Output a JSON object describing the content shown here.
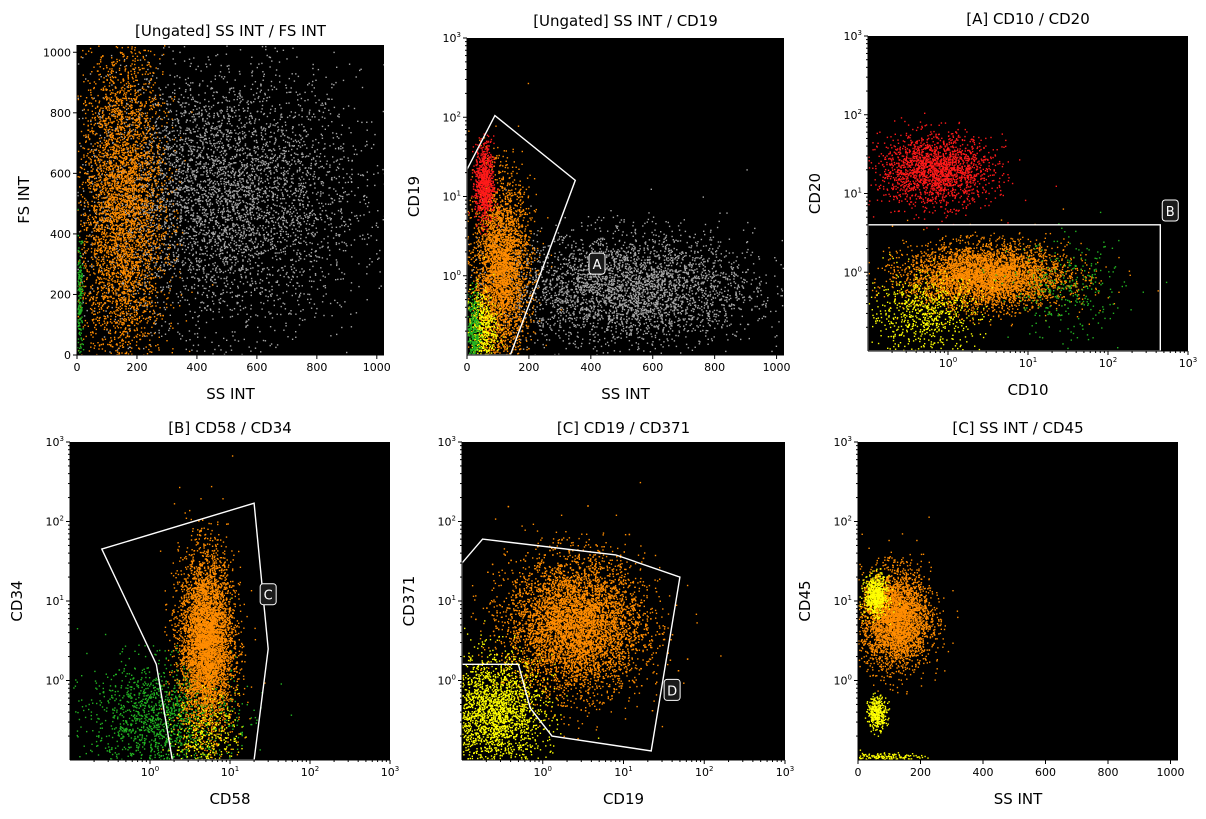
{
  "figure": "flow cytometry gating panels",
  "colors": {
    "background": "#000000",
    "orange": "#ff8c00",
    "red": "#ff1a1a",
    "yellow": "#ffff00",
    "green": "#22b422",
    "gray": "#a6a6a6",
    "gate": "#ffffff"
  },
  "chart_data": [
    {
      "type": "scatter",
      "title": "[Ungated] SS INT / FS INT",
      "xlabel": "SS INT",
      "ylabel": "FS INT",
      "xscale": "linear",
      "yscale": "linear",
      "xlim": [
        0,
        1024
      ],
      "ylim": [
        0,
        1024
      ],
      "xticks": [
        "0",
        "200",
        "400",
        "600",
        "800",
        "1000"
      ],
      "yticks": [
        "0",
        "200",
        "400",
        "600",
        "800",
        "1000"
      ],
      "gates": [],
      "populations": [
        {
          "color": "#a6a6a6",
          "x": [
            480,
            230
          ],
          "y": [
            520,
            210
          ],
          "n": 5000
        },
        {
          "color": "#ff8c00",
          "x": [
            150,
            70
          ],
          "y": [
            480,
            270
          ],
          "n": 4500
        },
        {
          "color": "#22b422",
          "x": [
            8,
            6
          ],
          "y": [
            200,
            100
          ],
          "n": 200
        }
      ]
    },
    {
      "type": "scatter",
      "title": "[Ungated] SS INT / CD19",
      "xlabel": "SS INT",
      "ylabel": "CD19",
      "xscale": "linear",
      "yscale": "log",
      "xlim": [
        0,
        1024
      ],
      "ylim": [
        0.1,
        1000
      ],
      "xticks": [
        "0",
        "200",
        "400",
        "600",
        "800",
        "1000"
      ],
      "yticks": [
        "10^0",
        "10^1",
        "10^2",
        "10^3"
      ],
      "gates": [
        {
          "label": "A",
          "label_at": [
            420,
            1.4
          ],
          "points": [
            [
              0,
              22
            ],
            [
              90,
              105
            ],
            [
              350,
              16
            ],
            [
              140,
              0.1
            ],
            [
              0,
              0.1
            ]
          ]
        }
      ],
      "populations": [
        {
          "color": "#a6a6a6",
          "x": [
            520,
            200
          ],
          "y": [
            0.7,
            0.35
          ],
          "n": 3500
        },
        {
          "color": "#ff8c00",
          "x": [
            110,
            45
          ],
          "y": [
            1.2,
            0.55
          ],
          "n": 3500
        },
        {
          "color": "#ff1a1a",
          "x": [
            55,
            15
          ],
          "y": [
            15,
            0.25
          ],
          "n": 800
        },
        {
          "color": "#ffff00",
          "x": [
            45,
            25
          ],
          "y": [
            0.22,
            0.25
          ],
          "n": 500
        },
        {
          "color": "#22b422",
          "x": [
            20,
            10
          ],
          "y": [
            0.2,
            0.25
          ],
          "n": 300
        }
      ]
    },
    {
      "type": "scatter",
      "title": "[A] CD10 / CD20",
      "xlabel": "CD10",
      "ylabel": "CD20",
      "xscale": "log",
      "yscale": "log",
      "xlim": [
        0.1,
        1000
      ],
      "ylim": [
        0.1,
        1000
      ],
      "xticks": [
        "10^0",
        "10^1",
        "10^2",
        "10^3"
      ],
      "yticks": [
        "10^0",
        "10^1",
        "10^2",
        "10^3"
      ],
      "gates": [
        {
          "label": "B",
          "label_at": [
            600,
            6
          ],
          "points": [
            [
              0.1,
              4
            ],
            [
              450,
              4
            ],
            [
              450,
              0.1
            ],
            [
              0.1,
              0.1
            ]
          ]
        }
      ],
      "populations": [
        {
          "color": "#ff1a1a",
          "x": [
            0.7,
            0.35
          ],
          "y": [
            20,
            0.22
          ],
          "n": 2000
        },
        {
          "color": "#ff8c00",
          "x": [
            3,
            0.5
          ],
          "y": [
            0.9,
            0.2
          ],
          "n": 4500
        },
        {
          "color": "#ffff00",
          "x": [
            0.5,
            0.35
          ],
          "y": [
            0.3,
            0.25
          ],
          "n": 700
        },
        {
          "color": "#22b422",
          "x": [
            30,
            0.35
          ],
          "y": [
            0.6,
            0.3
          ],
          "n": 300
        }
      ]
    },
    {
      "type": "scatter",
      "title": "[B] CD58 / CD34",
      "xlabel": "CD58",
      "ylabel": "CD34",
      "xscale": "log",
      "yscale": "log",
      "xlim": [
        0.1,
        1000
      ],
      "ylim": [
        0.1,
        1000
      ],
      "xticks": [
        "10^0",
        "10^1",
        "10^2",
        "10^3"
      ],
      "yticks": [
        "10^0",
        "10^1",
        "10^2",
        "10^3"
      ],
      "gates": [
        {
          "label": "C",
          "label_at": [
            30,
            12
          ],
          "points": [
            [
              0.25,
              45
            ],
            [
              20,
              170
            ],
            [
              30,
              2.5
            ],
            [
              20,
              0.1
            ],
            [
              1.9,
              0.1
            ],
            [
              1.2,
              1.6
            ]
          ]
        }
      ],
      "populations": [
        {
          "color": "#22b422",
          "x": [
            1.4,
            0.45
          ],
          "y": [
            0.35,
            0.35
          ],
          "n": 1500
        },
        {
          "color": "#ff8c00",
          "x": [
            5,
            0.17
          ],
          "y": [
            3,
            0.55
          ],
          "n": 5000
        },
        {
          "color": "#ffff00",
          "x": [
            5,
            0.2
          ],
          "y": [
            0.2,
            0.25
          ],
          "n": 300
        }
      ]
    },
    {
      "type": "scatter",
      "title": "[C] CD19 / CD371",
      "xlabel": "CD19",
      "ylabel": "CD371",
      "xscale": "log",
      "yscale": "log",
      "xlim": [
        0.1,
        1000
      ],
      "ylim": [
        0.1,
        1000
      ],
      "xticks": [
        "10^0",
        "10^1",
        "10^2",
        "10^3"
      ],
      "yticks": [
        "10^0",
        "10^1",
        "10^2",
        "10^3"
      ],
      "gates": [
        {
          "label": "D",
          "label_at": [
            40,
            0.75
          ],
          "points": [
            [
              0.1,
              30
            ],
            [
              0.18,
              60
            ],
            [
              8,
              38
            ],
            [
              50,
              20
            ],
            [
              22,
              0.13
            ],
            [
              1.3,
              0.2
            ],
            [
              0.7,
              0.45
            ],
            [
              0.5,
              1.6
            ],
            [
              0.1,
              1.6
            ]
          ]
        }
      ],
      "populations": [
        {
          "color": "#ff8c00",
          "x": [
            2.5,
            0.42
          ],
          "y": [
            5,
            0.42
          ],
          "n": 6500
        },
        {
          "color": "#ffff00",
          "x": [
            0.25,
            0.3
          ],
          "y": [
            0.4,
            0.35
          ],
          "n": 2200
        }
      ]
    },
    {
      "type": "scatter",
      "title": "[C] SS INT / CD45",
      "xlabel": "SS INT",
      "ylabel": "CD45",
      "xscale": "linear",
      "yscale": "log",
      "xlim": [
        0,
        1024
      ],
      "ylim": [
        0.1,
        1000
      ],
      "xticks": [
        "0",
        "200",
        "400",
        "600",
        "800",
        "1000"
      ],
      "yticks": [
        "10^0",
        "10^1",
        "10^2",
        "10^3"
      ],
      "gates": [],
      "populations": [
        {
          "color": "#ff8c00",
          "x": [
            120,
            55
          ],
          "y": [
            6,
            0.3
          ],
          "n": 3500
        },
        {
          "color": "#ffff00",
          "x": [
            55,
            18
          ],
          "y": [
            12,
            0.12
          ],
          "n": 600
        },
        {
          "color": "#ffff00",
          "x": [
            60,
            15
          ],
          "y": [
            0.4,
            0.1
          ],
          "n": 350
        },
        {
          "color": "#ffff00",
          "x": [
            80,
            60
          ],
          "y": [
            0.11,
            0.03
          ],
          "n": 150
        }
      ]
    }
  ]
}
